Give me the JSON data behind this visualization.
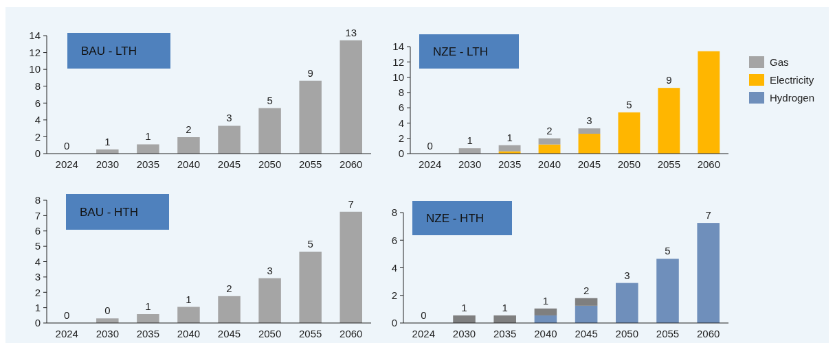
{
  "chart_data": [
    {
      "type": "bar",
      "title": "BAU - LTH",
      "categories": [
        "2024",
        "2030",
        "2035",
        "2040",
        "2045",
        "2050",
        "2055",
        "2060"
      ],
      "ylim": [
        0,
        14
      ],
      "yticks": [
        0,
        2,
        4,
        6,
        8,
        10,
        12,
        14
      ],
      "series": [
        {
          "color": "#a5a5a5",
          "values": [
            0,
            0.5,
            1.1,
            1.95,
            3.3,
            5.4,
            8.65,
            13.45
          ],
          "value_labels": [
            "0",
            "1",
            "1",
            "2",
            "3",
            "5",
            "9",
            "13"
          ]
        }
      ]
    },
    {
      "type": "bar",
      "title": "NZE - LTH",
      "stacked": true,
      "legend": "right",
      "categories": [
        "2024",
        "2030",
        "2035",
        "2040",
        "2045",
        "2050",
        "2055",
        "2060"
      ],
      "ylim": [
        0,
        14
      ],
      "yticks": [
        0,
        2,
        4,
        6,
        8,
        10,
        12,
        14
      ],
      "series": [
        {
          "name": "Electricity",
          "color": "#ffb600",
          "values": [
            0,
            0,
            0.3,
            1.2,
            2.6,
            5.4,
            8.6,
            13.4
          ]
        },
        {
          "name": "Gas",
          "color": "#a5a5a5",
          "values": [
            0,
            0.7,
            0.8,
            0.8,
            0.7,
            0,
            0,
            0
          ]
        }
      ],
      "totals": [
        "0",
        "1",
        "1",
        "2",
        "3",
        "5",
        "9",
        null
      ]
    },
    {
      "type": "bar",
      "title": "BAU - HTH",
      "categories": [
        "2024",
        "2030",
        "2035",
        "2040",
        "2045",
        "2050",
        "2055",
        "2060"
      ],
      "ylim": [
        0,
        8
      ],
      "yticks": [
        0,
        1,
        2,
        3,
        4,
        5,
        6,
        7,
        8
      ],
      "series": [
        {
          "color": "#a5a5a5",
          "values": [
            0,
            0.3,
            0.58,
            1.05,
            1.75,
            2.92,
            4.65,
            7.25
          ],
          "value_labels": [
            "0",
            "0",
            "1",
            "1",
            "2",
            "3",
            "5",
            "7"
          ]
        }
      ]
    },
    {
      "type": "bar",
      "title": "NZE - HTH",
      "stacked": true,
      "legend": "right",
      "categories": [
        "2024",
        "2030",
        "2035",
        "2040",
        "2045",
        "2050",
        "2055",
        "2060"
      ],
      "ylim": [
        0,
        8
      ],
      "yticks": [
        0,
        2,
        4,
        6,
        8
      ],
      "series": [
        {
          "name": "Hydrogen",
          "color": "#6f8fbb",
          "values": [
            0,
            0,
            0,
            0.55,
            1.25,
            2.9,
            4.65,
            7.25
          ]
        },
        {
          "color": "#7f7f7f",
          "values": [
            0,
            0.55,
            0.55,
            0.5,
            0.55,
            0,
            0,
            0
          ]
        }
      ],
      "totals": [
        "0",
        "1",
        "1",
        "1",
        "2",
        "3",
        "5",
        "7"
      ]
    }
  ]
}
